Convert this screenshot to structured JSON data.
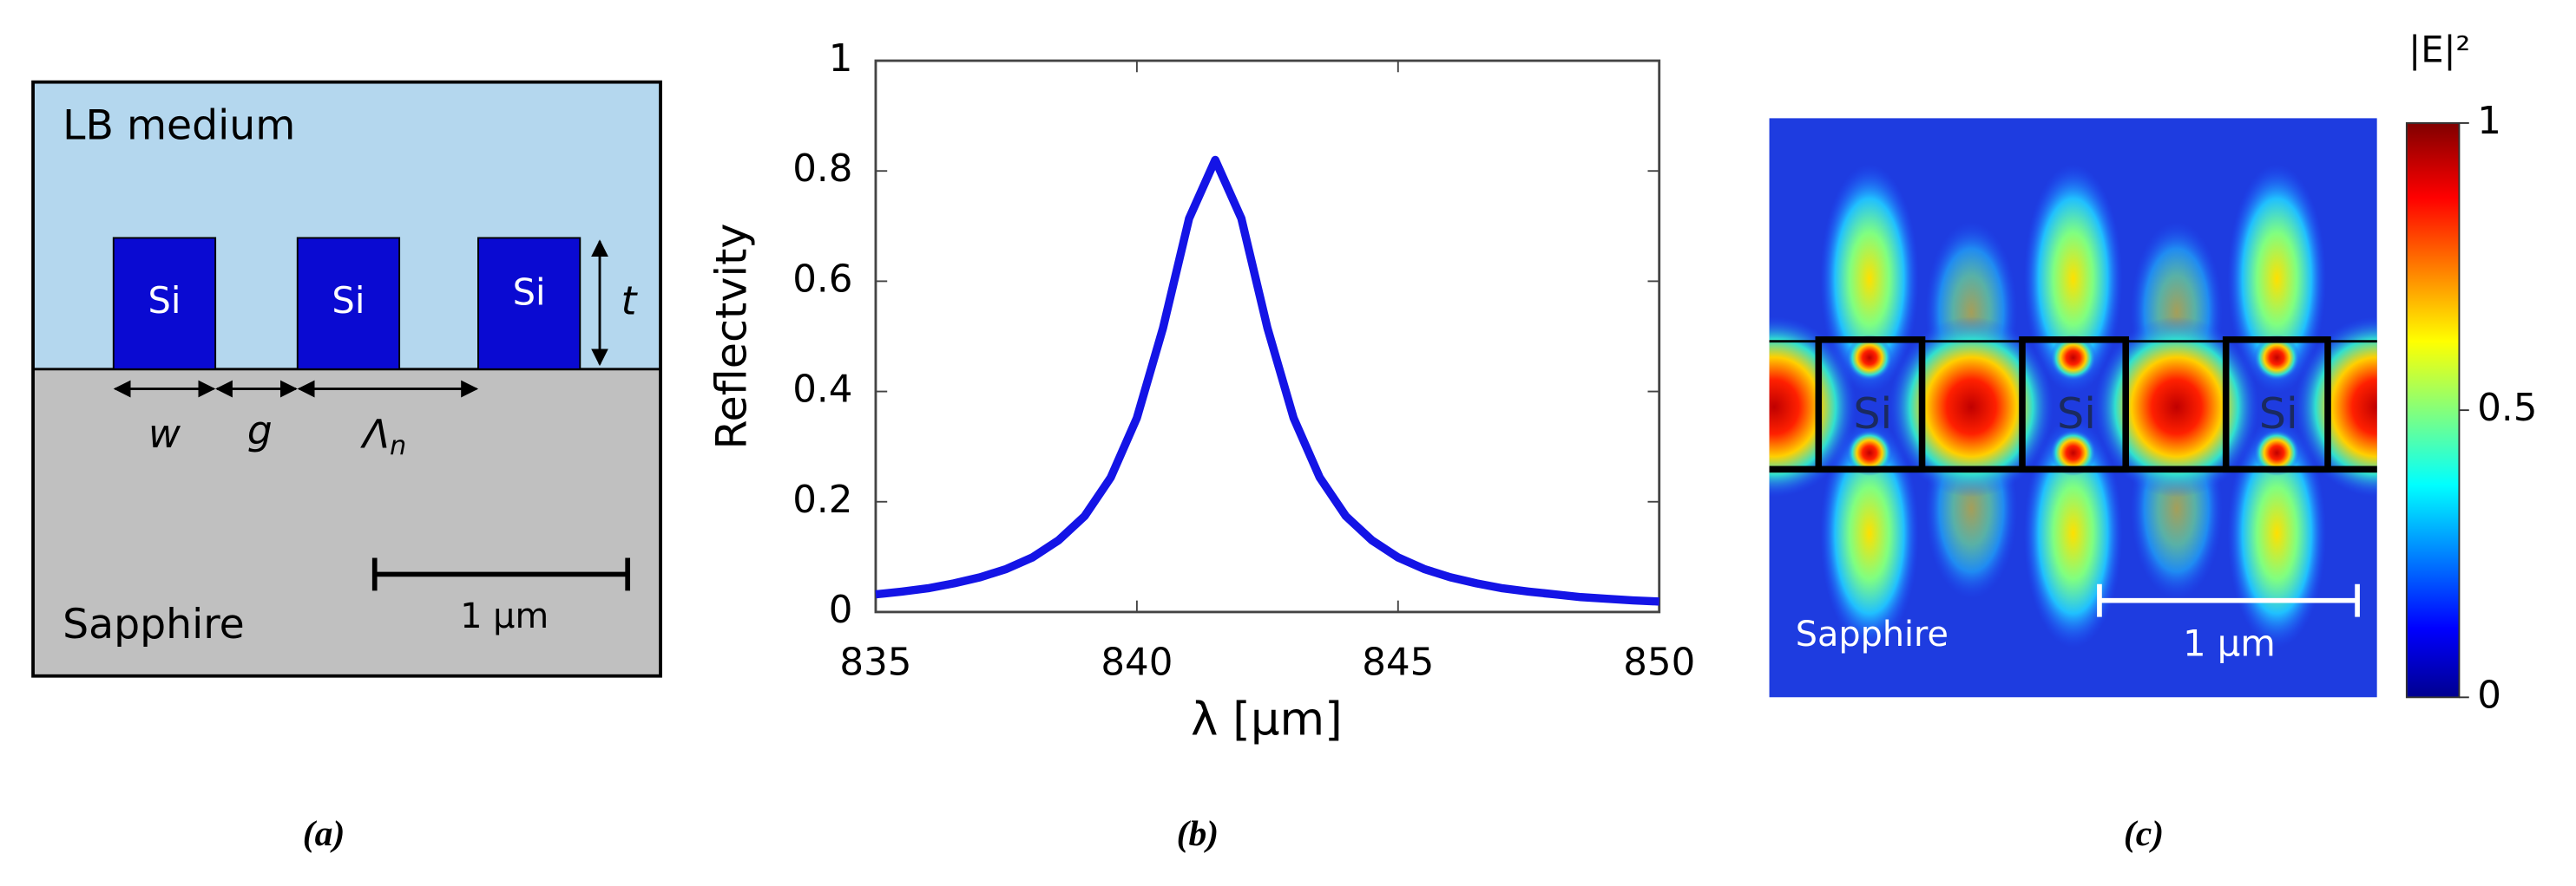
{
  "diagram_a": {
    "top_medium": "LB medium",
    "bottom_medium": "Sapphire",
    "blocks": [
      "Si",
      "Si",
      "Si"
    ],
    "thickness_label": "t",
    "width_label": "w",
    "gap_label": "g",
    "period_label": "Λ",
    "period_subscript": "n",
    "scale_label": "1 μm"
  },
  "chart_data": {
    "type": "line",
    "ylabel": "Reflectvity",
    "xlabel": "λ [μm]",
    "x": [
      835,
      835.5,
      836,
      836.5,
      837,
      837.5,
      838,
      838.5,
      839,
      839.5,
      840,
      840.5,
      841,
      841.5,
      842,
      842.5,
      843,
      843.5,
      844,
      844.5,
      845,
      845.5,
      846,
      846.5,
      847,
      847.5,
      848,
      848.5,
      849,
      849.5,
      850
    ],
    "values": [
      0.032,
      0.037,
      0.043,
      0.052,
      0.063,
      0.078,
      0.099,
      0.13,
      0.174,
      0.244,
      0.352,
      0.515,
      0.714,
      0.82,
      0.714,
      0.515,
      0.352,
      0.244,
      0.174,
      0.13,
      0.099,
      0.078,
      0.063,
      0.052,
      0.043,
      0.037,
      0.032,
      0.027,
      0.024,
      0.021,
      0.019
    ],
    "color": "#1414e6",
    "xlim": [
      835,
      850
    ],
    "ylim": [
      0,
      1
    ],
    "xticks": [
      835,
      840,
      845,
      850
    ],
    "yticks": [
      0,
      0.2,
      0.4,
      0.6,
      0.8,
      1
    ],
    "grid": false
  },
  "diagram_c": {
    "blocks": [
      "Si",
      "Si",
      "Si"
    ],
    "medium": "Sapphire",
    "scale_label": "1 μm",
    "colorbar_label": "|E|²",
    "colorbar_lim": [
      0,
      1
    ],
    "colorbar_ticks": [
      0,
      0.5,
      1
    ]
  },
  "captions": [
    "(a)",
    "(b)",
    "(c)"
  ]
}
